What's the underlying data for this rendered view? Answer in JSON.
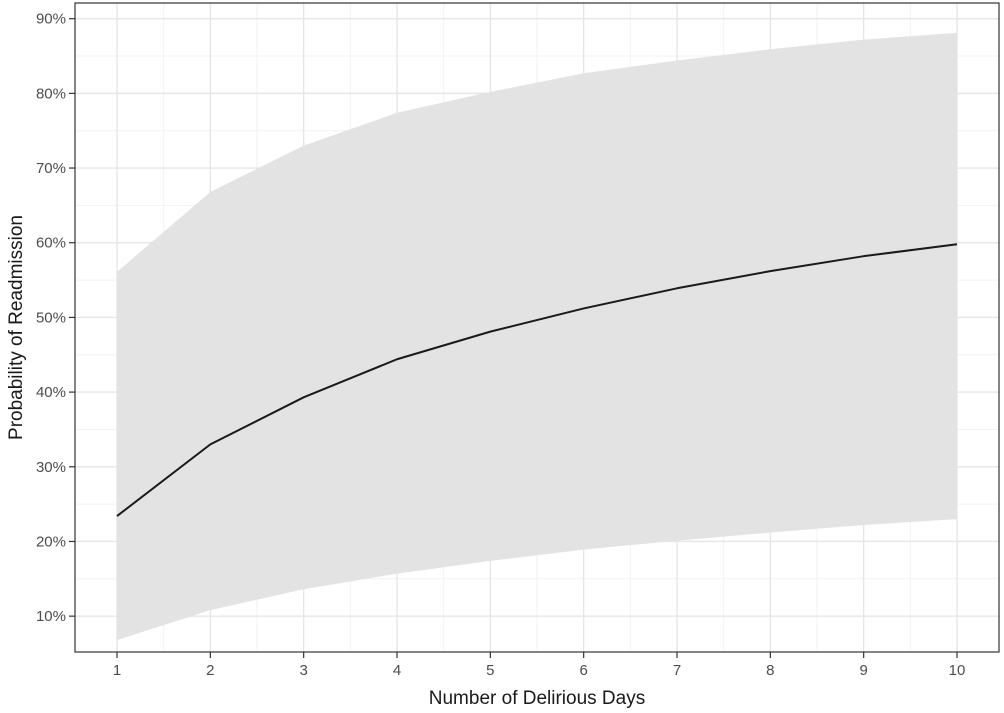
{
  "chart_data": {
    "type": "line",
    "title": "",
    "xlabel": "Number of Delirious Days",
    "ylabel": "Probability of Readmission",
    "x": [
      1,
      2,
      3,
      4,
      5,
      6,
      7,
      8,
      9,
      10
    ],
    "x_tick_labels": [
      "1",
      "2",
      "3",
      "4",
      "5",
      "6",
      "7",
      "8",
      "9",
      "10"
    ],
    "y_tick_values": [
      10,
      20,
      30,
      40,
      50,
      60,
      70,
      80,
      90
    ],
    "y_tick_labels": [
      "10%",
      "20%",
      "30%",
      "40%",
      "50%",
      "60%",
      "70%",
      "80%",
      "90%"
    ],
    "xlim": [
      0.55,
      10.45
    ],
    "ylim": [
      5.2,
      92.1
    ],
    "grid": true,
    "series": [
      {
        "values": [
          23.4,
          33.0,
          39.3,
          44.4,
          48.1,
          51.2,
          53.9,
          56.2,
          58.2,
          59.8
        ],
        "lower": [
          6.8,
          10.8,
          13.6,
          15.7,
          17.4,
          18.9,
          20.1,
          21.2,
          22.2,
          23.0
        ],
        "upper": [
          56.1,
          66.8,
          73.0,
          77.4,
          80.2,
          82.7,
          84.4,
          85.9,
          87.2,
          88.1
        ],
        "line_color": "#1a1a1a",
        "band_color": "#e3e3e3"
      }
    ]
  }
}
